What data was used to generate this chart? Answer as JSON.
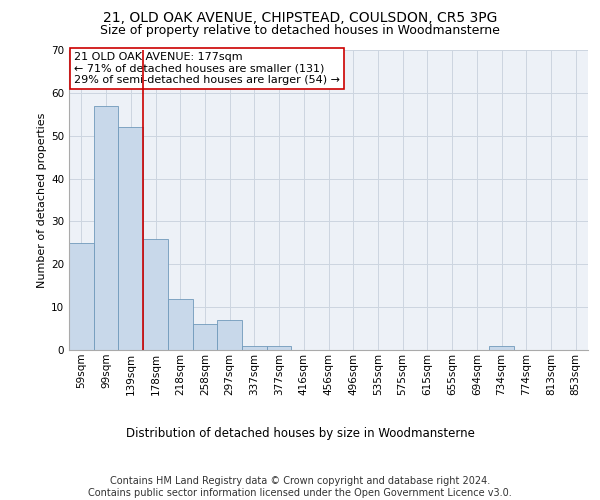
{
  "title1": "21, OLD OAK AVENUE, CHIPSTEAD, COULSDON, CR5 3PG",
  "title2": "Size of property relative to detached houses in Woodmansterne",
  "xlabel": "Distribution of detached houses by size in Woodmansterne",
  "ylabel": "Number of detached properties",
  "categories": [
    "59sqm",
    "99sqm",
    "139sqm",
    "178sqm",
    "218sqm",
    "258sqm",
    "297sqm",
    "337sqm",
    "377sqm",
    "416sqm",
    "456sqm",
    "496sqm",
    "535sqm",
    "575sqm",
    "615sqm",
    "655sqm",
    "694sqm",
    "734sqm",
    "774sqm",
    "813sqm",
    "853sqm"
  ],
  "values": [
    25,
    57,
    52,
    26,
    12,
    6,
    7,
    1,
    1,
    0,
    0,
    0,
    0,
    0,
    0,
    0,
    0,
    1,
    0,
    0,
    0
  ],
  "bar_color": "#c8d8ea",
  "bar_edge_color": "#7099bb",
  "bar_width": 1.0,
  "property_line_color": "#cc0000",
  "annotation_text": "21 OLD OAK AVENUE: 177sqm\n← 71% of detached houses are smaller (131)\n29% of semi-detached houses are larger (54) →",
  "annotation_box_color": "#cc0000",
  "ylim": [
    0,
    70
  ],
  "yticks": [
    0,
    10,
    20,
    30,
    40,
    50,
    60,
    70
  ],
  "grid_color": "#ccd5e0",
  "background_color": "#edf1f7",
  "footer_line1": "Contains HM Land Registry data © Crown copyright and database right 2024.",
  "footer_line2": "Contains public sector information licensed under the Open Government Licence v3.0.",
  "title1_fontsize": 10,
  "title2_fontsize": 9,
  "xlabel_fontsize": 8.5,
  "ylabel_fontsize": 8,
  "tick_fontsize": 7.5,
  "annotation_fontsize": 8,
  "footer_fontsize": 7
}
